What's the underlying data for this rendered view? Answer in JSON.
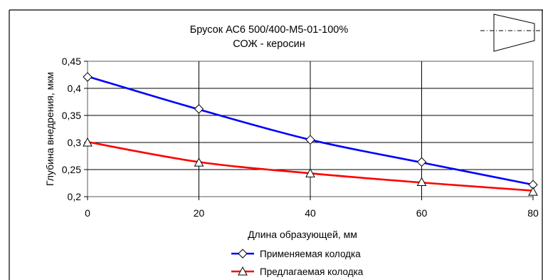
{
  "chart_data": {
    "type": "line",
    "title": "Брусок АС6 500/400-М5-01-100%",
    "subtitle": "СОЖ - керосин",
    "xlabel": "Длина образующей, мм",
    "ylabel": "Глубина внедрения, мкм",
    "xlim": [
      0,
      80
    ],
    "ylim": [
      0.2,
      0.45
    ],
    "x_ticks": [
      "0",
      "20",
      "40",
      "60",
      "80"
    ],
    "y_ticks": [
      "0,2",
      "0,25",
      "0,3",
      "0,35",
      "0,4",
      "0,45"
    ],
    "grid": true,
    "legend_position": "bottom",
    "x": [
      0,
      20,
      40,
      60,
      80
    ],
    "series": [
      {
        "name": "Применяемая колодка",
        "color": "#0000ff",
        "marker": "diamond",
        "points": [
          0.421,
          0.362,
          0.305,
          0.264,
          0.222
        ],
        "trend": [
          0.422,
          0.361,
          0.305,
          0.263,
          0.222
        ]
      },
      {
        "name": "Предлагаемая колодка",
        "color": "#ff0000",
        "marker": "triangle",
        "points": [
          0.3,
          0.263,
          0.243,
          0.227,
          0.209
        ],
        "trend": [
          0.301,
          0.264,
          0.243,
          0.226,
          0.211
        ]
      }
    ]
  }
}
